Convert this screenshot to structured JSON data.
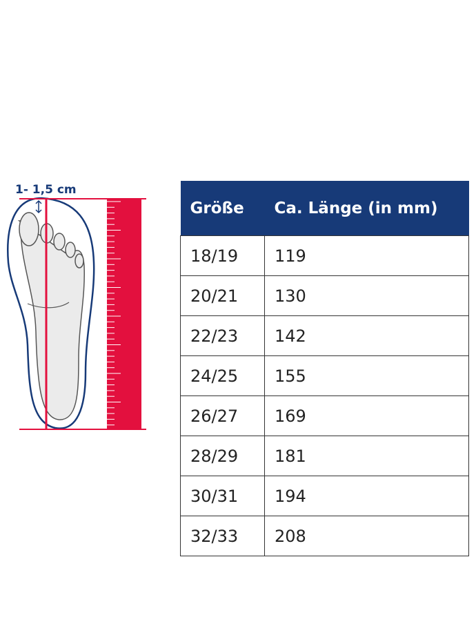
{
  "measurement_label": "1- 1,5 cm",
  "table": {
    "headers": [
      "Größe",
      "Ca. Länge (in mm)"
    ],
    "rows": [
      [
        "18/19",
        "119"
      ],
      [
        "20/21",
        "130"
      ],
      [
        "22/23",
        "142"
      ],
      [
        "24/25",
        "155"
      ],
      [
        "26/27",
        "169"
      ],
      [
        "28/29",
        "181"
      ],
      [
        "30/31",
        "194"
      ],
      [
        "32/33",
        "208"
      ]
    ]
  }
}
